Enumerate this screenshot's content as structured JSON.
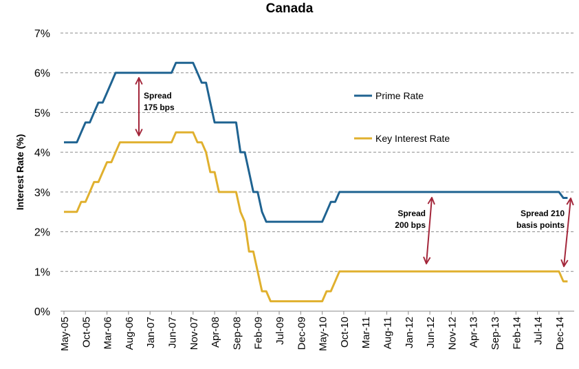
{
  "chart_data": {
    "type": "line",
    "title": "Canada",
    "xlabel": "",
    "ylabel": "Interest Rate (%)",
    "ylim": [
      0,
      7
    ],
    "yticks": [
      "0%",
      "1%",
      "2%",
      "3%",
      "4%",
      "5%",
      "6%",
      "7%"
    ],
    "grid": "horizontal dashed",
    "legend_placement": "inside, upper-right",
    "x_start": "May-05",
    "x_end": "Feb-15",
    "x_frequency": "monthly",
    "xtick_labels": [
      "May-05",
      "Oct-05",
      "Mar-06",
      "Aug-06",
      "Jan-07",
      "Jun-07",
      "Nov-07",
      "Apr-08",
      "Sep-08",
      "Feb-09",
      "Jul-09",
      "Dec-09",
      "May-10",
      "Oct-10",
      "Mar-11",
      "Aug-11",
      "Jan-12",
      "Jun-12",
      "Nov-12",
      "Apr-13",
      "Sep-13",
      "Feb-14",
      "Jul-14",
      "Dec-14"
    ],
    "series": [
      {
        "name": "Prime Rate",
        "color": "#1f6391",
        "values": [
          4.25,
          4.25,
          4.25,
          4.25,
          4.5,
          4.75,
          4.75,
          5.0,
          5.25,
          5.25,
          5.5,
          5.75,
          6.0,
          6.0,
          6.0,
          6.0,
          6.0,
          6.0,
          6.0,
          6.0,
          6.0,
          6.0,
          6.0,
          6.0,
          6.0,
          6.0,
          6.25,
          6.25,
          6.25,
          6.25,
          6.25,
          6.0,
          5.75,
          5.75,
          5.25,
          4.75,
          4.75,
          4.75,
          4.75,
          4.75,
          4.75,
          4.0,
          4.0,
          3.5,
          3.0,
          3.0,
          2.5,
          2.25,
          2.25,
          2.25,
          2.25,
          2.25,
          2.25,
          2.25,
          2.25,
          2.25,
          2.25,
          2.25,
          2.25,
          2.25,
          2.25,
          2.5,
          2.75,
          2.75,
          3.0,
          3.0,
          3.0,
          3.0,
          3.0,
          3.0,
          3.0,
          3.0,
          3.0,
          3.0,
          3.0,
          3.0,
          3.0,
          3.0,
          3.0,
          3.0,
          3.0,
          3.0,
          3.0,
          3.0,
          3.0,
          3.0,
          3.0,
          3.0,
          3.0,
          3.0,
          3.0,
          3.0,
          3.0,
          3.0,
          3.0,
          3.0,
          3.0,
          3.0,
          3.0,
          3.0,
          3.0,
          3.0,
          3.0,
          3.0,
          3.0,
          3.0,
          3.0,
          3.0,
          3.0,
          3.0,
          3.0,
          3.0,
          3.0,
          3.0,
          3.0,
          3.0,
          2.85,
          2.85
        ]
      },
      {
        "name": "Key Interest Rate",
        "color": "#e0b02e",
        "values": [
          2.5,
          2.5,
          2.5,
          2.5,
          2.75,
          2.75,
          3.0,
          3.25,
          3.25,
          3.5,
          3.75,
          3.75,
          4.0,
          4.25,
          4.25,
          4.25,
          4.25,
          4.25,
          4.25,
          4.25,
          4.25,
          4.25,
          4.25,
          4.25,
          4.25,
          4.25,
          4.5,
          4.5,
          4.5,
          4.5,
          4.5,
          4.25,
          4.25,
          4.0,
          3.5,
          3.5,
          3.0,
          3.0,
          3.0,
          3.0,
          3.0,
          2.5,
          2.25,
          1.5,
          1.5,
          1.0,
          0.5,
          0.5,
          0.25,
          0.25,
          0.25,
          0.25,
          0.25,
          0.25,
          0.25,
          0.25,
          0.25,
          0.25,
          0.25,
          0.25,
          0.25,
          0.5,
          0.5,
          0.75,
          1.0,
          1.0,
          1.0,
          1.0,
          1.0,
          1.0,
          1.0,
          1.0,
          1.0,
          1.0,
          1.0,
          1.0,
          1.0,
          1.0,
          1.0,
          1.0,
          1.0,
          1.0,
          1.0,
          1.0,
          1.0,
          1.0,
          1.0,
          1.0,
          1.0,
          1.0,
          1.0,
          1.0,
          1.0,
          1.0,
          1.0,
          1.0,
          1.0,
          1.0,
          1.0,
          1.0,
          1.0,
          1.0,
          1.0,
          1.0,
          1.0,
          1.0,
          1.0,
          1.0,
          1.0,
          1.0,
          1.0,
          1.0,
          1.0,
          1.0,
          1.0,
          1.0,
          0.75,
          0.75
        ]
      }
    ],
    "annotations": [
      {
        "lines": [
          "Spread",
          "175 bps"
        ],
        "at": "Oct-06"
      },
      {
        "lines": [
          "Spread",
          "200 bps"
        ],
        "at": "Jun-12"
      },
      {
        "lines": [
          "Spread 210",
          "basis points"
        ],
        "at": "Feb-15"
      }
    ],
    "annotation_color": "#a3263a"
  }
}
